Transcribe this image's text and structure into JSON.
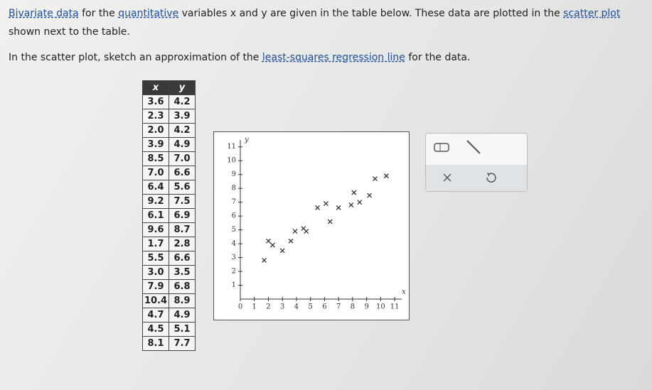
{
  "paragraphs": [
    [
      {
        "text": "Bivariate data",
        "link": true
      },
      {
        "text": " for the "
      },
      {
        "text": "quantitative",
        "link": true
      },
      {
        "text": " variables x and y are given in the table below. These data are plotted in the "
      },
      {
        "text": "scatter plot",
        "link": true
      },
      {
        "text": " shown next to the table."
      }
    ],
    [
      {
        "text": "In the scatter plot, sketch an approximation of the "
      },
      {
        "text": "least-squares regression line",
        "link": true
      },
      {
        "text": " for the data."
      }
    ]
  ],
  "table": {
    "header": [
      "x",
      "y"
    ],
    "rows": [
      [
        "3.6",
        "4.2"
      ],
      [
        "2.3",
        "3.9"
      ],
      [
        "2.0",
        "4.2"
      ],
      [
        "3.9",
        "4.9"
      ],
      [
        "8.5",
        "7.0"
      ],
      [
        "7.0",
        "6.6"
      ],
      [
        "6.4",
        "5.6"
      ],
      [
        "9.2",
        "7.5"
      ],
      [
        "6.1",
        "6.9"
      ],
      [
        "9.6",
        "8.7"
      ],
      [
        "1.7",
        "2.8"
      ],
      [
        "5.5",
        "6.6"
      ],
      [
        "3.0",
        "3.5"
      ],
      [
        "7.9",
        "6.8"
      ],
      [
        "10.4",
        "8.9"
      ],
      [
        "4.7",
        "4.9"
      ],
      [
        "4.5",
        "5.1"
      ],
      [
        "8.1",
        "7.7"
      ]
    ]
  },
  "plot": {
    "x_label": "x",
    "y_label": "y",
    "xlim": [
      0,
      11.5
    ],
    "ylim": [
      0,
      11.5
    ],
    "xticks": [
      0,
      1,
      2,
      3,
      4,
      5,
      6,
      7,
      8,
      9,
      10,
      11
    ],
    "yticks": [
      1,
      2,
      3,
      4,
      5,
      6,
      7,
      8,
      9,
      10,
      11
    ],
    "marker_color": "#333333"
  }
}
